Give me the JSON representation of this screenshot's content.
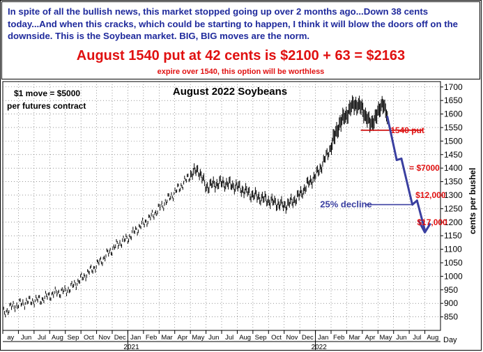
{
  "header": {
    "note": "In spite of all the bullish news, this market stopped going up over 2 months ago...Down 38 cents today...And when this cracks, which could be starting to happen, I think it will blow the doors off on the downside. This is the Soybean market. BIG, BIG moves are the norm.",
    "headline": "August 1540 put at 42 cents is $2100 + 63 = $2163",
    "subline": "expire over 1540, this option will be worthless"
  },
  "colors": {
    "blue_text": "#1f2a9c",
    "red_text": "#e01010",
    "forecast_arrow": "#3a3fa0",
    "price_bars": "#000000",
    "grid": "#555555"
  },
  "chart_data": {
    "type": "line",
    "title": "August 2022 Soybeans",
    "ylabel": "cents per bushel",
    "xlabel": "Day",
    "ylim": [
      800,
      1720
    ],
    "yticks": [
      850,
      900,
      950,
      1000,
      1050,
      1100,
      1150,
      1200,
      1250,
      1300,
      1350,
      1400,
      1450,
      1500,
      1550,
      1600,
      1650,
      1700
    ],
    "month_labels": [
      "ay",
      "Jun",
      "Jul",
      "Aug",
      "Sep",
      "Oct",
      "Nov",
      "Dec",
      "Jan",
      "Feb",
      "Mar",
      "Apr",
      "May",
      "Jun",
      "Jul",
      "Aug",
      "Sep",
      "Oct",
      "Nov",
      "Dec",
      "Jan",
      "Feb",
      "Mar",
      "Apr",
      "May",
      "Jun",
      "Jul",
      "Aug"
    ],
    "year_labels": [
      {
        "text": "2021",
        "month_index": 8
      },
      {
        "text": "2022",
        "month_index": 20
      }
    ],
    "annotations": {
      "contract_note_1": "$1 move = $5000",
      "contract_note_2": "per futures contract",
      "put_label": "1540 put",
      "loss_7000": "= $7000",
      "loss_12000": "$12,000",
      "loss_17000": "$17,000",
      "decline_label": "25% decline"
    },
    "put_strike": 1540,
    "price_path": [
      [
        0,
        860
      ],
      [
        0.5,
        885
      ],
      [
        1,
        895
      ],
      [
        1.5,
        905
      ],
      [
        2,
        910
      ],
      [
        2.5,
        915
      ],
      [
        3,
        930
      ],
      [
        3.5,
        940
      ],
      [
        4,
        945
      ],
      [
        4.5,
        965
      ],
      [
        5,
        990
      ],
      [
        5.5,
        1015
      ],
      [
        6,
        1040
      ],
      [
        6.5,
        1070
      ],
      [
        7,
        1100
      ],
      [
        7.5,
        1125
      ],
      [
        8,
        1140
      ],
      [
        8.5,
        1170
      ],
      [
        9,
        1195
      ],
      [
        9.5,
        1220
      ],
      [
        10,
        1250
      ],
      [
        10.5,
        1280
      ],
      [
        11,
        1310
      ],
      [
        11.5,
        1340
      ],
      [
        12,
        1375
      ],
      [
        12.5,
        1395
      ],
      [
        13,
        1330
      ],
      [
        13.5,
        1340
      ],
      [
        14,
        1345
      ],
      [
        14.5,
        1340
      ],
      [
        15,
        1330
      ],
      [
        15.5,
        1315
      ],
      [
        16,
        1300
      ],
      [
        16.5,
        1290
      ],
      [
        17,
        1280
      ],
      [
        17.5,
        1270
      ],
      [
        18,
        1260
      ],
      [
        18.5,
        1275
      ],
      [
        19,
        1300
      ],
      [
        19.5,
        1340
      ],
      [
        20,
        1370
      ],
      [
        20.5,
        1420
      ],
      [
        21,
        1480
      ],
      [
        21.5,
        1560
      ],
      [
        22,
        1600
      ],
      [
        22.5,
        1640
      ],
      [
        23,
        1620
      ],
      [
        23.5,
        1560
      ],
      [
        24,
        1600
      ],
      [
        24.3,
        1650
      ],
      [
        24.6,
        1580
      ]
    ],
    "forecast_path": [
      [
        24.6,
        1590
      ],
      [
        25.2,
        1430
      ],
      [
        25.5,
        1435
      ],
      [
        26.2,
        1265
      ],
      [
        26.5,
        1280
      ],
      [
        27.0,
        1170
      ]
    ],
    "decline_arrow_target": [
      26.3,
      1265
    ]
  }
}
